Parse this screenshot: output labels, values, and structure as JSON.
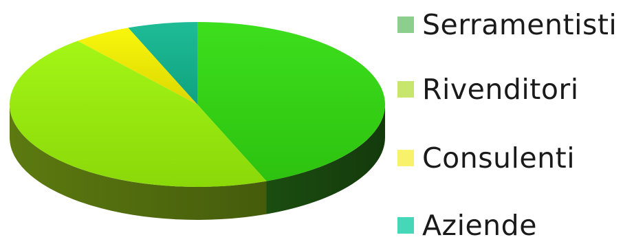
{
  "chart_data": {
    "type": "pie",
    "style": "3d",
    "categories": [
      "Serramentisti",
      "Rivenditori",
      "Consulenti",
      "Aziende"
    ],
    "values": [
      44,
      45,
      5,
      6
    ],
    "unit": "%",
    "colors": {
      "top": [
        "#33dd11",
        "#9ef50a",
        "#f9f600",
        "#12b890"
      ],
      "side": [
        "#1b4d10",
        "#5c7a10",
        "#8a8a00",
        "#0e6650"
      ]
    },
    "legend": {
      "position": "right",
      "swatch_colors": [
        "#8ccf8c",
        "#c8e66e",
        "#f8f26a",
        "#46d6b8"
      ]
    }
  }
}
